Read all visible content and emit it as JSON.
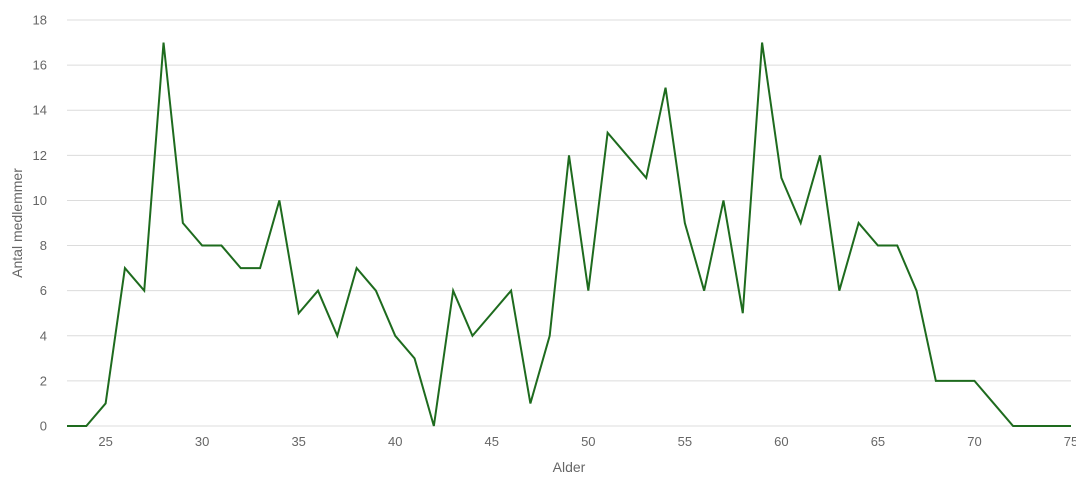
{
  "chart_data": {
    "type": "line",
    "title": "",
    "xlabel": "Alder",
    "ylabel": "Antal medlemmer",
    "xlim": [
      23,
      75
    ],
    "ylim": [
      0,
      18
    ],
    "x_ticks": [
      25,
      30,
      35,
      40,
      45,
      50,
      55,
      60,
      65,
      70,
      75
    ],
    "y_ticks": [
      0,
      2,
      4,
      6,
      8,
      10,
      12,
      14,
      16,
      18
    ],
    "grid": true,
    "legend": "none",
    "series": [
      {
        "color": "#1e6b1e",
        "x": [
          23,
          24,
          25,
          26,
          27,
          28,
          29,
          30,
          31,
          32,
          33,
          34,
          35,
          36,
          37,
          38,
          39,
          40,
          41,
          42,
          43,
          44,
          45,
          46,
          47,
          48,
          49,
          50,
          51,
          52,
          53,
          54,
          55,
          56,
          57,
          58,
          59,
          60,
          61,
          62,
          63,
          64,
          65,
          66,
          67,
          68,
          69,
          70,
          71,
          72,
          73,
          74,
          75
        ],
        "y": [
          0,
          0,
          1,
          7,
          6,
          17,
          9,
          8,
          8,
          7,
          7,
          10,
          5,
          6,
          4,
          7,
          6,
          4,
          3,
          0,
          6,
          4,
          5,
          6,
          1,
          4,
          12,
          6,
          13,
          12,
          11,
          15,
          9,
          6,
          10,
          5,
          17,
          11,
          9,
          12,
          6,
          9,
          8,
          8,
          6,
          2,
          2,
          2,
          1,
          0,
          0,
          0,
          0
        ]
      }
    ]
  }
}
